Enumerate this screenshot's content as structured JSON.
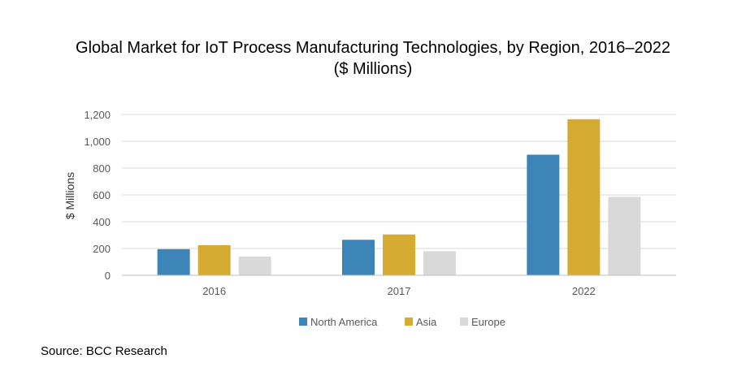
{
  "chart_data": {
    "type": "bar",
    "title": "Global Market for IoT Process Manufacturing Technologies, by Region, 2016–2022",
    "subtitle": "($ Millions)",
    "ylabel": "$ Millions",
    "xlabel": "",
    "ylim": [
      0,
      1200
    ],
    "yticks": [
      0,
      200,
      400,
      600,
      800,
      1000,
      1200
    ],
    "ytick_labels": [
      "0",
      "200",
      "400",
      "600",
      "800",
      "1,000",
      "1,200"
    ],
    "categories": [
      "2016",
      "2017",
      "2022"
    ],
    "series": [
      {
        "name": "North America",
        "color": "#3d85b8",
        "values": [
          195,
          265,
          900
        ]
      },
      {
        "name": "Asia",
        "color": "#d6ab31",
        "values": [
          225,
          305,
          1165
        ]
      },
      {
        "name": "Europe",
        "color": "#d9d9d9",
        "values": [
          140,
          180,
          585
        ]
      }
    ],
    "grid": true,
    "legend_position": "bottom"
  },
  "source": "Source: BCC Research"
}
